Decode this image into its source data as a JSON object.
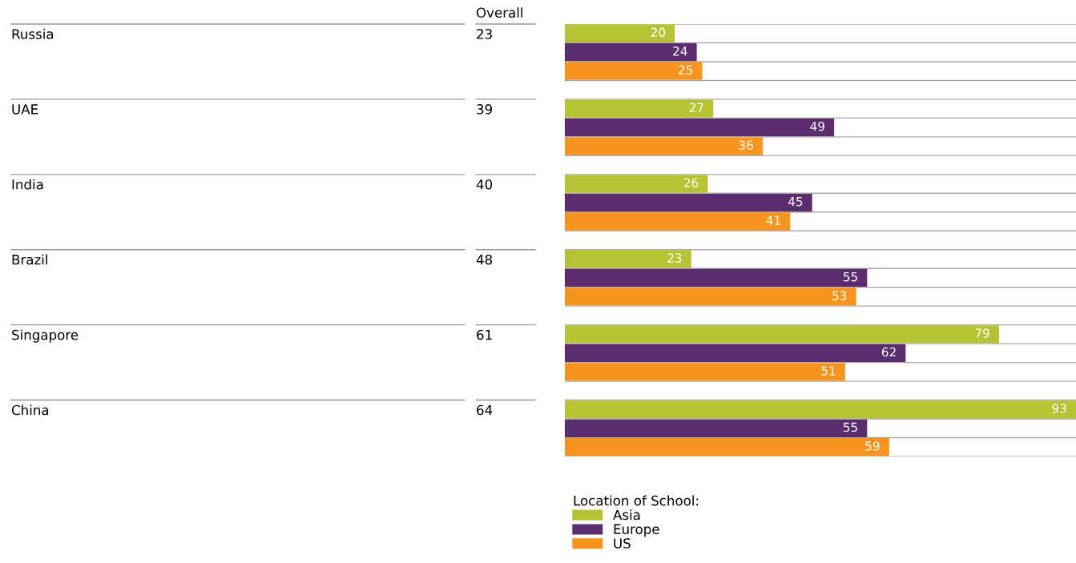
{
  "chart_data": {
    "type": "bar",
    "orientation": "horizontal",
    "categories": [
      "Russia",
      "UAE",
      "India",
      "Brazil",
      "Singapore",
      "China"
    ],
    "series": [
      {
        "name": "Asia",
        "color": "#b5c334",
        "values": [
          20,
          27,
          26,
          23,
          79,
          93
        ]
      },
      {
        "name": "Europe",
        "color": "#5b2d6e",
        "values": [
          24,
          49,
          45,
          55,
          62,
          55
        ]
      },
      {
        "name": "US",
        "color": "#f7941d",
        "values": [
          25,
          36,
          41,
          53,
          51,
          59
        ]
      }
    ],
    "xlim": [
      0,
      93
    ],
    "data_labels": true,
    "grid": true,
    "legend": "bottom",
    "legend_title": "Location of School:",
    "annotations": [
      "Overall",
      "23",
      "39",
      "40",
      "48",
      "61",
      "64"
    ]
  }
}
